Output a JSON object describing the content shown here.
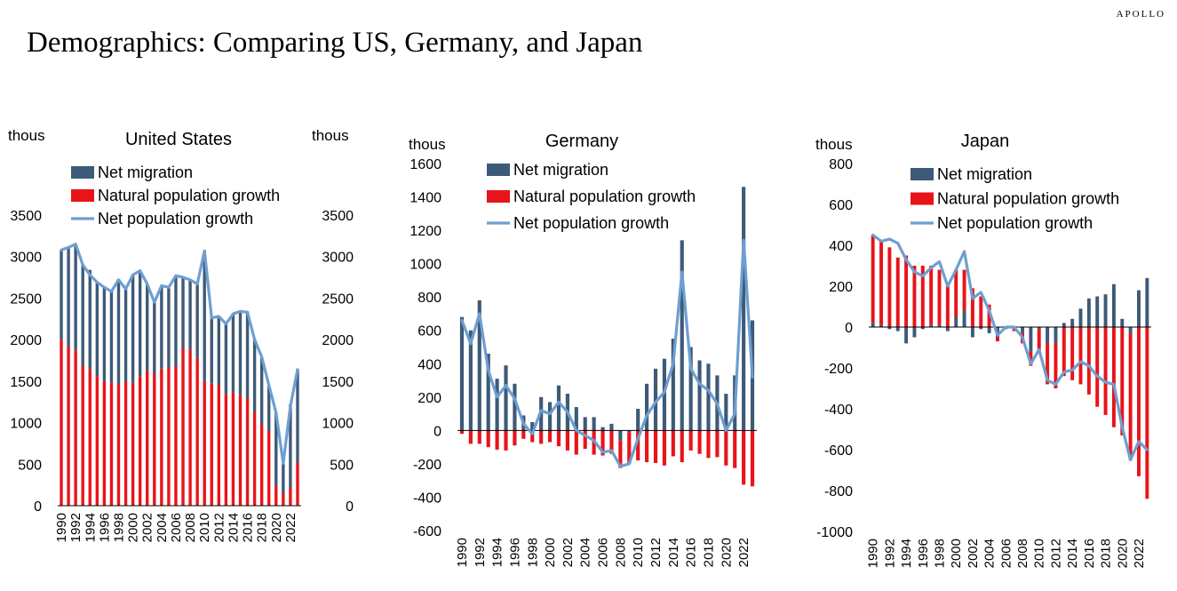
{
  "brand": "APOLLO",
  "title": "Demographics: Comparing US, Germany, and Japan",
  "colors": {
    "migration": "#3d5a78",
    "natural": "#e8141a",
    "net": "#6f9ed0"
  },
  "chart_data": [
    {
      "type": "bar",
      "id": "us",
      "title": "United States",
      "unit_label_left": "thous",
      "unit_label_right": "thous",
      "stacked": true,
      "legend": [
        "Net migration",
        "Natural population growth",
        "Net population growth"
      ],
      "legend_position": "top-left",
      "ylim": [
        0,
        3500
      ],
      "yticks": [
        0,
        500,
        1000,
        1500,
        2000,
        2500,
        3000,
        3500
      ],
      "right_axis": true,
      "x": [
        1990,
        1991,
        1992,
        1993,
        1994,
        1995,
        1996,
        1997,
        1998,
        1999,
        2000,
        2001,
        2002,
        2003,
        2004,
        2005,
        2006,
        2007,
        2008,
        2009,
        2010,
        2011,
        2012,
        2013,
        2014,
        2015,
        2016,
        2017,
        2018,
        2019,
        2020,
        2021,
        2022,
        2023
      ],
      "xtick_labels": [
        "1990",
        "1992",
        "1994",
        "1996",
        "1998",
        "2000",
        "2002",
        "2004",
        "2006",
        "2008",
        "2010",
        "2012",
        "2014",
        "2016",
        "2018",
        "2020",
        "2022"
      ],
      "series": [
        {
          "name": "Natural population growth",
          "kind": "bar",
          "values": [
            2000,
            1920,
            1870,
            1680,
            1640,
            1560,
            1500,
            1480,
            1460,
            1500,
            1480,
            1560,
            1630,
            1600,
            1650,
            1660,
            1680,
            1900,
            1880,
            1780,
            1500,
            1470,
            1450,
            1340,
            1360,
            1330,
            1290,
            1130,
            980,
            900,
            240,
            150,
            220,
            520
          ]
        },
        {
          "name": "Net migration",
          "kind": "bar",
          "values": [
            1080,
            1190,
            1270,
            1220,
            1200,
            1140,
            1130,
            1110,
            1270,
            1110,
            1300,
            1250,
            1040,
            850,
            1000,
            970,
            1090,
            860,
            840,
            890,
            1570,
            790,
            810,
            850,
            950,
            1010,
            1050,
            880,
            800,
            550,
            880,
            360,
            1000,
            1120
          ]
        },
        {
          "name": "Net population growth",
          "kind": "line",
          "values": [
            3080,
            3110,
            3150,
            2900,
            2780,
            2690,
            2630,
            2580,
            2720,
            2610,
            2780,
            2830,
            2670,
            2450,
            2650,
            2630,
            2770,
            2750,
            2720,
            2670,
            3070,
            2260,
            2280,
            2190,
            2310,
            2340,
            2330,
            2000,
            1790,
            1450,
            1120,
            510,
            1200,
            1640
          ]
        }
      ]
    },
    {
      "type": "bar",
      "id": "germany",
      "title": "Germany",
      "unit_label_left": "thous",
      "stacked": true,
      "legend": [
        "Net migration",
        "Natural population growth",
        "Net population growth"
      ],
      "legend_position": "top-left",
      "ylim": [
        -600,
        1600
      ],
      "yticks": [
        -600,
        -400,
        -200,
        0,
        200,
        400,
        600,
        800,
        1000,
        1200,
        1400,
        1600
      ],
      "x": [
        1990,
        1991,
        1992,
        1993,
        1994,
        1995,
        1996,
        1997,
        1998,
        1999,
        2000,
        2001,
        2002,
        2003,
        2004,
        2005,
        2006,
        2007,
        2008,
        2009,
        2010,
        2011,
        2012,
        2013,
        2014,
        2015,
        2016,
        2017,
        2018,
        2019,
        2020,
        2021,
        2022,
        2023
      ],
      "xtick_labels": [
        "1990",
        "1992",
        "1994",
        "1996",
        "1998",
        "2000",
        "2002",
        "2004",
        "2006",
        "2008",
        "2010",
        "2012",
        "2014",
        "2016",
        "2018",
        "2020",
        "2022"
      ],
      "series": [
        {
          "name": "Net migration",
          "kind": "bar",
          "values": [
            680,
            600,
            780,
            460,
            310,
            390,
            280,
            90,
            50,
            200,
            170,
            270,
            220,
            140,
            80,
            80,
            20,
            40,
            -60,
            -10,
            130,
            280,
            370,
            430,
            550,
            1140,
            500,
            420,
            400,
            330,
            220,
            330,
            1460,
            660
          ]
        },
        {
          "name": "Natural population growth",
          "kind": "bar",
          "values": [
            -20,
            -80,
            -80,
            -100,
            -115,
            -120,
            -90,
            -50,
            -70,
            -80,
            -70,
            -95,
            -120,
            -145,
            -110,
            -145,
            -150,
            -140,
            -165,
            -190,
            -180,
            -190,
            -195,
            -210,
            -155,
            -190,
            -120,
            -140,
            -165,
            -160,
            -210,
            -225,
            -325,
            -335
          ]
        },
        {
          "name": "Net population growth",
          "kind": "line",
          "values": [
            660,
            520,
            700,
            360,
            200,
            270,
            190,
            40,
            -20,
            120,
            100,
            170,
            110,
            0,
            -30,
            -60,
            -130,
            -120,
            -215,
            -200,
            -50,
            90,
            170,
            230,
            400,
            950,
            370,
            280,
            240,
            160,
            0,
            100,
            1140,
            320
          ]
        }
      ]
    },
    {
      "type": "bar",
      "id": "japan",
      "title": "Japan",
      "unit_label_left": "thous",
      "stacked": true,
      "legend": [
        "Net migration",
        "Natural population growth",
        "Net population growth"
      ],
      "legend_position": "top-left",
      "ylim": [
        -1000,
        800
      ],
      "yticks": [
        -1000,
        -800,
        -600,
        -400,
        -200,
        0,
        200,
        400,
        600,
        800
      ],
      "x": [
        1990,
        1991,
        1992,
        1993,
        1994,
        1995,
        1996,
        1997,
        1998,
        1999,
        2000,
        2001,
        2002,
        2003,
        2004,
        2005,
        2006,
        2007,
        2008,
        2009,
        2010,
        2011,
        2012,
        2013,
        2014,
        2015,
        2016,
        2017,
        2018,
        2019,
        2020,
        2021,
        2022,
        2023
      ],
      "xtick_labels": [
        "1990",
        "1992",
        "1994",
        "1996",
        "1998",
        "2000",
        "2002",
        "2004",
        "2006",
        "2008",
        "2010",
        "2012",
        "2014",
        "2016",
        "2018",
        "2020",
        "2022"
      ],
      "series": [
        {
          "name": "Net migration",
          "kind": "bar",
          "values": [
            20,
            10,
            -10,
            -20,
            -80,
            -50,
            -10,
            10,
            10,
            -20,
            50,
            80,
            -50,
            -10,
            -30,
            -50,
            -10,
            -10,
            -30,
            -120,
            -10,
            -80,
            -80,
            20,
            40,
            90,
            140,
            150,
            160,
            210,
            40,
            -30,
            180,
            240
          ]
        },
        {
          "name": "Natural population growth",
          "kind": "bar",
          "values": [
            430,
            410,
            390,
            340,
            350,
            300,
            300,
            290,
            270,
            220,
            230,
            200,
            190,
            150,
            110,
            -20,
            0,
            -10,
            -50,
            -70,
            -120,
            -200,
            -220,
            -240,
            -260,
            -280,
            -330,
            -390,
            -430,
            -490,
            -530,
            -620,
            -730,
            -840
          ]
        },
        {
          "name": "Net population growth",
          "kind": "line",
          "values": [
            450,
            420,
            430,
            410,
            330,
            270,
            250,
            290,
            320,
            200,
            280,
            370,
            140,
            170,
            80,
            -40,
            0,
            0,
            -50,
            -180,
            -110,
            -260,
            -280,
            -220,
            -210,
            -170,
            -190,
            -240,
            -270,
            -280,
            -490,
            -650,
            -560,
            -600
          ]
        }
      ]
    }
  ]
}
